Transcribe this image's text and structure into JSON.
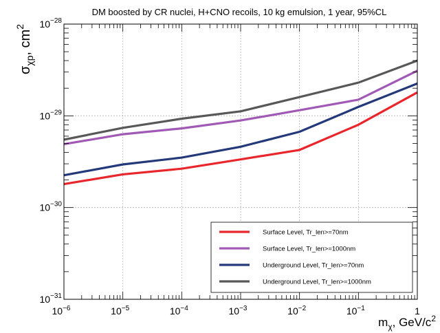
{
  "chart_data": {
    "type": "line",
    "title": "DM boosted by CR nuclei, H+CNO recoils, 10 kg emulsion, 1 year, 95%CL",
    "xlabel": "mχ, GeV/c²",
    "ylabel": "σχp, cm²",
    "x_scale": "log",
    "y_scale": "log",
    "xlim": [
      1e-06,
      1
    ],
    "ylim": [
      1e-31,
      1e-28
    ],
    "grid": true,
    "legend_position": "bottom-right",
    "x": [
      1e-06,
      1e-05,
      0.0001,
      0.001,
      0.01,
      0.1,
      1
    ],
    "x_tick_labels": [
      {
        "base": "10",
        "exp": "−6"
      },
      {
        "base": "10",
        "exp": "−5"
      },
      {
        "base": "10",
        "exp": "−4"
      },
      {
        "base": "10",
        "exp": "−3"
      },
      {
        "base": "10",
        "exp": "−2"
      },
      {
        "base": "10",
        "exp": "−1"
      },
      {
        "base": "1",
        "exp": ""
      }
    ],
    "y_tick_labels": [
      {
        "base": "10",
        "exp": "−31"
      },
      {
        "base": "10",
        "exp": "−30"
      },
      {
        "base": "10",
        "exp": "−29"
      },
      {
        "base": "10",
        "exp": "−28"
      }
    ],
    "series": [
      {
        "name": "Surface Level, Tr_len>=70nm",
        "color": "#e8262c",
        "values": [
          1.8e-30,
          2.3e-30,
          2.65e-30,
          3.35e-30,
          4.25e-30,
          8e-30,
          1.8e-29
        ]
      },
      {
        "name": "Surface Level, Tr_len>=1000nm",
        "color": "#a059b4",
        "values": [
          4.9e-30,
          6.3e-30,
          7.3e-30,
          8.9e-30,
          1.15e-29,
          1.5e-29,
          3.1e-29
        ]
      },
      {
        "name": "Underground Level, Tr_len>=70nm",
        "color": "#24397a",
        "values": [
          2.25e-30,
          2.95e-30,
          3.5e-30,
          4.6e-30,
          6.7e-30,
          1.25e-29,
          2.25e-29
        ]
      },
      {
        "name": "Underground Level, Tr_len>=1000nm",
        "color": "#585858",
        "values": [
          5.5e-30,
          7.4e-30,
          9.3e-30,
          1.12e-29,
          1.6e-29,
          2.3e-29,
          4e-29
        ]
      }
    ]
  }
}
